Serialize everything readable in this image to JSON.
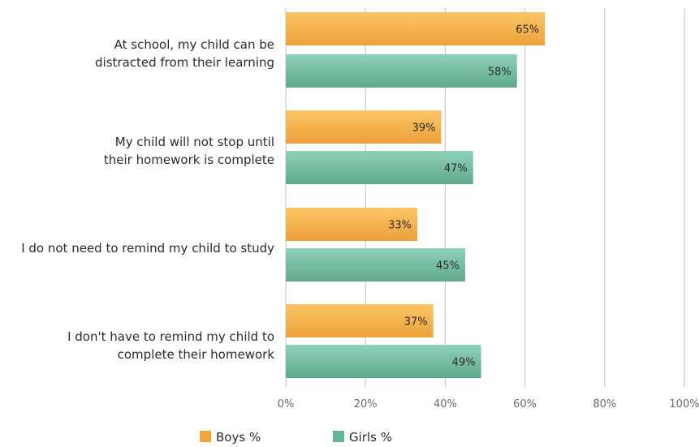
{
  "chart_data": {
    "type": "bar",
    "orientation": "horizontal",
    "categories": [
      [
        "At school, my child can be",
        "distracted from their learning"
      ],
      [
        "My child will not stop until",
        "their homework is complete"
      ],
      [
        "I do not need to remind my child to study"
      ],
      [
        "I don't have to remind my child to",
        "complete their homework"
      ]
    ],
    "series": [
      {
        "name": "Boys %",
        "values": [
          65,
          39,
          33,
          37
        ],
        "labels": [
          "65%",
          "39%",
          "33%",
          "37%"
        ],
        "color": "#f0a73a"
      },
      {
        "name": "Girls %",
        "values": [
          58,
          47,
          45,
          49
        ],
        "labels": [
          "58%",
          "47%",
          "45%",
          "49%"
        ],
        "color": "#66b395"
      }
    ],
    "xlim": [
      0,
      100
    ],
    "ticks": [
      0,
      20,
      40,
      60,
      80,
      100
    ],
    "tick_labels": [
      "0%",
      "20%",
      "40%",
      "60%",
      "80%",
      "100%"
    ],
    "grid": true,
    "legend_position": "bottom"
  }
}
